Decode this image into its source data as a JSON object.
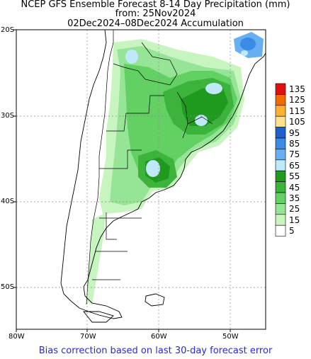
{
  "header": {
    "line1": "NCEP GFS Ensemble Forecast 8-14 Day Precipitation (mm)",
    "line2": "from: 25Nov2024",
    "line3": "02Dec2024–08Dec2024 Accumulation"
  },
  "axes": {
    "lat_labels": [
      "20S",
      "30S",
      "40S",
      "50S"
    ],
    "lon_labels": [
      "80W",
      "70W",
      "60W",
      "50W"
    ]
  },
  "colorbar": {
    "labels": [
      "135",
      "125",
      "115",
      "105",
      "95",
      "85",
      "75",
      "65",
      "55",
      "45",
      "35",
      "25",
      "15",
      "5"
    ],
    "colors": [
      "#e01010",
      "#f56a00",
      "#ffb030",
      "#ffe28a",
      "#1f5fcf",
      "#3b8ae6",
      "#66b0f2",
      "#bfe8fa",
      "#1f9a1f",
      "#3cb43c",
      "#62d062",
      "#96e496",
      "#c8f4c0",
      "#ffffff"
    ]
  },
  "footer": {
    "text": "Bias correction based on last 30-day forecast error"
  }
}
